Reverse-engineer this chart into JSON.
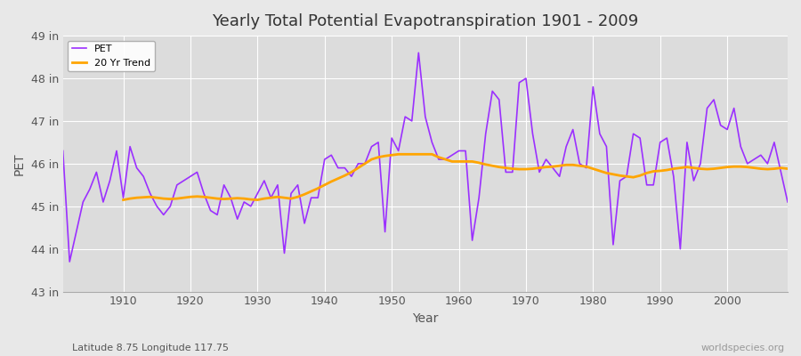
{
  "title": "Yearly Total Potential Evapotranspiration 1901 - 2009",
  "xlabel": "Year",
  "ylabel": "PET",
  "subtitle": "Latitude 8.75 Longitude 117.75",
  "watermark": "worldspecies.org",
  "pet_color": "#9B30FF",
  "trend_color": "#FFA500",
  "bg_color": "#E8E8E8",
  "plot_bg_color": "#DCDCDC",
  "grid_color": "#FFFFFF",
  "ylim": [
    43,
    49
  ],
  "yticks": [
    43,
    44,
    45,
    46,
    47,
    48,
    49
  ],
  "ytick_labels": [
    "43 in",
    "44 in",
    "45 in",
    "46 in",
    "47 in",
    "48 in",
    "49 in"
  ],
  "years": [
    1901,
    1902,
    1903,
    1904,
    1905,
    1906,
    1907,
    1908,
    1909,
    1910,
    1911,
    1912,
    1913,
    1914,
    1915,
    1916,
    1917,
    1918,
    1919,
    1920,
    1921,
    1922,
    1923,
    1924,
    1925,
    1926,
    1927,
    1928,
    1929,
    1930,
    1931,
    1932,
    1933,
    1934,
    1935,
    1936,
    1937,
    1938,
    1939,
    1940,
    1941,
    1942,
    1943,
    1944,
    1945,
    1946,
    1947,
    1948,
    1949,
    1950,
    1951,
    1952,
    1953,
    1954,
    1955,
    1956,
    1957,
    1958,
    1959,
    1960,
    1961,
    1962,
    1963,
    1964,
    1965,
    1966,
    1967,
    1968,
    1969,
    1970,
    1971,
    1972,
    1973,
    1974,
    1975,
    1976,
    1977,
    1978,
    1979,
    1980,
    1981,
    1982,
    1983,
    1984,
    1985,
    1986,
    1987,
    1988,
    1989,
    1990,
    1991,
    1992,
    1993,
    1994,
    1995,
    1996,
    1997,
    1998,
    1999,
    2000,
    2001,
    2002,
    2003,
    2004,
    2005,
    2006,
    2007,
    2008,
    2009
  ],
  "pet_values": [
    46.3,
    43.7,
    44.4,
    45.1,
    45.4,
    45.8,
    45.1,
    45.6,
    46.3,
    45.2,
    46.4,
    45.9,
    45.7,
    45.3,
    45.0,
    44.8,
    45.0,
    45.5,
    45.6,
    45.7,
    45.8,
    45.3,
    44.9,
    44.8,
    45.5,
    45.2,
    44.7,
    45.1,
    45.0,
    45.3,
    45.6,
    45.2,
    45.5,
    43.9,
    45.3,
    45.5,
    44.6,
    45.2,
    45.2,
    46.1,
    46.2,
    45.9,
    45.9,
    45.7,
    46.0,
    46.0,
    46.4,
    46.5,
    44.4,
    46.6,
    46.3,
    47.1,
    47.0,
    48.6,
    47.1,
    46.5,
    46.1,
    46.1,
    46.2,
    46.3,
    46.3,
    44.2,
    45.2,
    46.7,
    47.7,
    47.5,
    45.8,
    45.8,
    47.9,
    48.0,
    46.7,
    45.8,
    46.1,
    45.9,
    45.7,
    46.4,
    46.8,
    46.0,
    45.9,
    47.8,
    46.7,
    46.4,
    44.1,
    45.6,
    45.7,
    46.7,
    46.6,
    45.5,
    45.5,
    46.5,
    46.6,
    45.7,
    44.0,
    46.5,
    45.6,
    46.0,
    47.3,
    47.5,
    46.9,
    46.8,
    47.3,
    46.4,
    46.0,
    46.1,
    46.2,
    46.0,
    46.5,
    45.8,
    45.1
  ],
  "trend_years": [
    1910,
    1911,
    1912,
    1913,
    1914,
    1915,
    1916,
    1917,
    1918,
    1919,
    1920,
    1921,
    1922,
    1923,
    1924,
    1925,
    1926,
    1927,
    1928,
    1929,
    1930,
    1931,
    1932,
    1933,
    1934,
    1935,
    1936,
    1937,
    1938,
    1939,
    1940,
    1941,
    1942,
    1943,
    1944,
    1945,
    1946,
    1947,
    1948,
    1949,
    1950,
    1951,
    1952,
    1953,
    1954,
    1955,
    1956,
    1957,
    1958,
    1959,
    1960,
    1961,
    1962,
    1963,
    1964,
    1965,
    1966,
    1967,
    1968,
    1969,
    1970,
    1971,
    1972,
    1973,
    1974,
    1975,
    1976,
    1977,
    1978,
    1979,
    1980,
    1981,
    1982,
    1983,
    1984,
    1985,
    1986,
    1987,
    1988,
    1989,
    1990,
    1991,
    1992,
    1993,
    1994,
    1995,
    1996,
    1997,
    1998,
    1999,
    2000,
    2001,
    2002,
    2003,
    2004,
    2005,
    2006,
    2007,
    2008,
    2009
  ],
  "trend_values": [
    45.15,
    45.18,
    45.2,
    45.21,
    45.22,
    45.2,
    45.18,
    45.17,
    45.18,
    45.2,
    45.22,
    45.23,
    45.22,
    45.2,
    45.18,
    45.17,
    45.18,
    45.19,
    45.18,
    45.16,
    45.15,
    45.18,
    45.2,
    45.22,
    45.2,
    45.18,
    45.22,
    45.28,
    45.35,
    45.42,
    45.5,
    45.58,
    45.65,
    45.72,
    45.8,
    45.9,
    46.0,
    46.1,
    46.15,
    46.18,
    46.2,
    46.22,
    46.22,
    46.22,
    46.22,
    46.22,
    46.22,
    46.15,
    46.1,
    46.05,
    46.05,
    46.05,
    46.05,
    46.02,
    45.98,
    45.95,
    45.92,
    45.9,
    45.88,
    45.87,
    45.87,
    45.88,
    45.9,
    45.92,
    45.93,
    45.95,
    45.97,
    45.97,
    45.95,
    45.93,
    45.88,
    45.83,
    45.78,
    45.75,
    45.72,
    45.7,
    45.68,
    45.72,
    45.78,
    45.82,
    45.83,
    45.85,
    45.88,
    45.9,
    45.92,
    45.9,
    45.88,
    45.87,
    45.88,
    45.9,
    45.92,
    45.93,
    45.93,
    45.92,
    45.9,
    45.88,
    45.87,
    45.88,
    45.9,
    45.88
  ]
}
